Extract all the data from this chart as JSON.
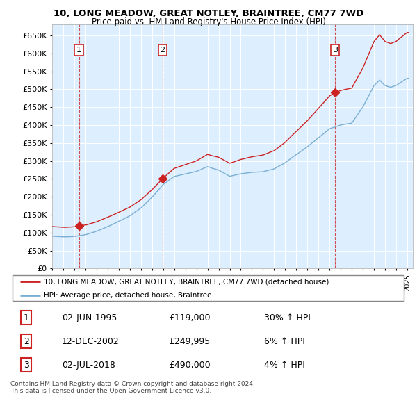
{
  "title": "10, LONG MEADOW, GREAT NOTLEY, BRAINTREE, CM77 7WD",
  "subtitle": "Price paid vs. HM Land Registry's House Price Index (HPI)",
  "ylim": [
    0,
    680000
  ],
  "yticks": [
    0,
    50000,
    100000,
    150000,
    200000,
    250000,
    300000,
    350000,
    400000,
    450000,
    500000,
    550000,
    600000,
    650000
  ],
  "sale_dates": [
    1995.42,
    2002.95,
    2018.5
  ],
  "sale_prices": [
    119000,
    249995,
    490000
  ],
  "sale_labels": [
    "1",
    "2",
    "3"
  ],
  "hpi_color": "#7aafd4",
  "price_color": "#cc2222",
  "sale_marker_color": "#cc2222",
  "plot_bg_color": "#ddeeff",
  "legend_label_price": "10, LONG MEADOW, GREAT NOTLEY, BRAINTREE, CM77 7WD (detached house)",
  "legend_label_hpi": "HPI: Average price, detached house, Braintree",
  "table_data": [
    [
      "1",
      "02-JUN-1995",
      "£119,000",
      "30% ↑ HPI"
    ],
    [
      "2",
      "12-DEC-2002",
      "£249,995",
      "6% ↑ HPI"
    ],
    [
      "3",
      "02-JUL-2018",
      "£490,000",
      "4% ↑ HPI"
    ]
  ],
  "footnote": "Contains HM Land Registry data © Crown copyright and database right 2024.\nThis data is licensed under the Open Government Licence v3.0.",
  "xmin": 1993,
  "xmax": 2025.5,
  "dashed_line_color_sale": "#cc2222",
  "dashed_line_color_other": "#888888"
}
